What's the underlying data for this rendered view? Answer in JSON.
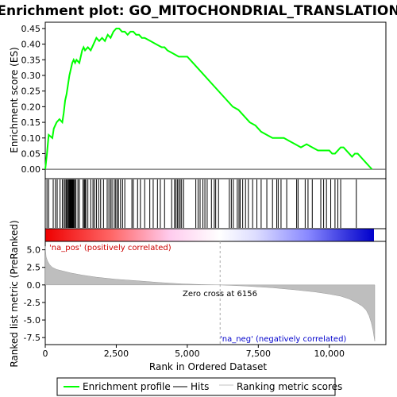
{
  "chart_data": {
    "type": "line",
    "title": "Enrichment plot: GO_MITOCHONDRIAL_TRANSLATION",
    "n_genes": 11600,
    "x_ticks": [
      0,
      2500,
      5000,
      7500,
      10000
    ],
    "x_tick_labels": [
      "0",
      "2,500",
      "5,000",
      "7,500",
      "10,000"
    ],
    "xlabel": "Rank in Ordered Dataset",
    "es_panel": {
      "ylabel": "Enrichment score (ES)",
      "ylim": [
        -0.03,
        0.47
      ],
      "y_ticks": [
        0.0,
        0.05,
        0.1,
        0.15,
        0.2,
        0.25,
        0.3,
        0.35,
        0.4,
        0.45
      ],
      "y_tick_labels": [
        "0.00",
        "0.05",
        "0.10",
        "0.15",
        "0.20",
        "0.25",
        "0.30",
        "0.35",
        "0.40",
        "0.45"
      ],
      "series": [
        {
          "name": "Enrichment profile",
          "color": "#00ff00",
          "x": [
            0,
            60,
            120,
            250,
            300,
            400,
            500,
            600,
            650,
            700,
            750,
            800,
            850,
            900,
            950,
            1000,
            1050,
            1100,
            1200,
            1300,
            1350,
            1400,
            1500,
            1600,
            1700,
            1800,
            1900,
            2000,
            2100,
            2200,
            2300,
            2400,
            2500,
            2600,
            2700,
            2800,
            2900,
            3000,
            3100,
            3200,
            3300,
            3400,
            3500,
            3700,
            3900,
            4100,
            4200,
            4300,
            4500,
            4700,
            4900,
            5000,
            5200,
            5400,
            5600,
            5800,
            6000,
            6200,
            6400,
            6600,
            6800,
            7000,
            7200,
            7400,
            7600,
            7800,
            8000,
            8200,
            8400,
            8600,
            8800,
            9000,
            9200,
            9400,
            9600,
            9700,
            9800,
            9900,
            10000,
            10100,
            10200,
            10300,
            10400,
            10500,
            10600,
            10700,
            10800,
            10900,
            11000,
            11100,
            11200,
            11300,
            11400,
            11500
          ],
          "y": [
            0.0,
            0.05,
            0.11,
            0.1,
            0.13,
            0.15,
            0.16,
            0.15,
            0.18,
            0.22,
            0.24,
            0.27,
            0.3,
            0.32,
            0.34,
            0.35,
            0.34,
            0.35,
            0.34,
            0.38,
            0.39,
            0.38,
            0.39,
            0.38,
            0.4,
            0.42,
            0.41,
            0.42,
            0.41,
            0.43,
            0.42,
            0.44,
            0.45,
            0.45,
            0.44,
            0.44,
            0.43,
            0.44,
            0.44,
            0.43,
            0.43,
            0.42,
            0.42,
            0.41,
            0.4,
            0.39,
            0.39,
            0.38,
            0.37,
            0.36,
            0.36,
            0.36,
            0.34,
            0.32,
            0.3,
            0.28,
            0.26,
            0.24,
            0.22,
            0.2,
            0.19,
            0.17,
            0.15,
            0.14,
            0.12,
            0.11,
            0.1,
            0.1,
            0.1,
            0.09,
            0.08,
            0.07,
            0.08,
            0.07,
            0.06,
            0.06,
            0.06,
            0.06,
            0.06,
            0.05,
            0.05,
            0.06,
            0.07,
            0.07,
            0.06,
            0.05,
            0.04,
            0.05,
            0.05,
            0.04,
            0.03,
            0.02,
            0.01,
            0.0
          ]
        }
      ]
    },
    "hits_positions": [
      60,
      120,
      280,
      360,
      420,
      520,
      600,
      660,
      700,
      740,
      780,
      800,
      820,
      850,
      870,
      890,
      910,
      930,
      950,
      970,
      990,
      1010,
      1040,
      1080,
      1150,
      1200,
      1330,
      1370,
      1400,
      1430,
      1500,
      1600,
      1680,
      1730,
      1800,
      1880,
      1950,
      2050,
      2180,
      2240,
      2300,
      2350,
      2430,
      2480,
      2530,
      2580,
      2650,
      2720,
      2800,
      3050,
      3100,
      3250,
      3350,
      3500,
      3680,
      3800,
      3950,
      4050,
      4200,
      4450,
      4550,
      4600,
      4650,
      4700,
      4750,
      4800,
      4870,
      5300,
      5380,
      5450,
      5550,
      5620,
      5700,
      5850,
      5950,
      6000,
      6100,
      6480,
      6550,
      6620,
      6760,
      6820,
      6860,
      6950,
      7050,
      7150,
      7300,
      7450,
      7600,
      7800,
      8000,
      8150,
      8200,
      8300,
      8500,
      8850,
      8900,
      9150,
      9250,
      9400,
      9700,
      9800,
      9900,
      10050,
      10200,
      10300,
      10400,
      10950
    ],
    "metric_panel": {
      "ylabel": "Ranked list metric (PreRanked)",
      "ylim": [
        -8.5,
        6.2
      ],
      "y_ticks": [
        5.0,
        2.5,
        0.0,
        -2.5,
        -5.0,
        -7.5
      ],
      "y_tick_labels": [
        "5.0",
        "2.5",
        "0.0",
        "-2.5",
        "-5.0",
        "-7.5"
      ],
      "x": [
        0,
        30,
        80,
        150,
        250,
        400,
        600,
        900,
        1300,
        1800,
        2500,
        3200,
        4000,
        4800,
        5500,
        6156,
        7000,
        8000,
        8800,
        9500,
        10000,
        10400,
        10700,
        10950,
        11150,
        11300,
        11400,
        11480,
        11540,
        11600
      ],
      "y": [
        5.5,
        4.0,
        3.4,
        2.9,
        2.5,
        2.2,
        2.0,
        1.7,
        1.4,
        1.1,
        0.8,
        0.6,
        0.35,
        0.15,
        0.05,
        0.0,
        -0.15,
        -0.4,
        -0.7,
        -1.0,
        -1.3,
        -1.6,
        -2.0,
        -2.5,
        -3.0,
        -3.6,
        -4.4,
        -5.4,
        -6.5,
        -8.0
      ],
      "zero_cross_label": "Zero cross at 6156",
      "zero_cross": 6156,
      "pos_label": "'na_pos' (positively correlated)",
      "neg_label": "'na_neg' (negatively correlated)"
    },
    "legend": {
      "position": "bottom",
      "entries": [
        {
          "label": "Enrichment profile",
          "color": "#00ff00"
        },
        {
          "label": "Hits",
          "color": "#000000"
        },
        {
          "label": "Ranking metric scores",
          "color": "#c0c0c0"
        }
      ]
    },
    "colors": {
      "pos_label": "#cc0000",
      "neg_label": "#0000cc",
      "metric_fill": "#bebebe",
      "zero_cross": "#aaaaaa"
    }
  }
}
